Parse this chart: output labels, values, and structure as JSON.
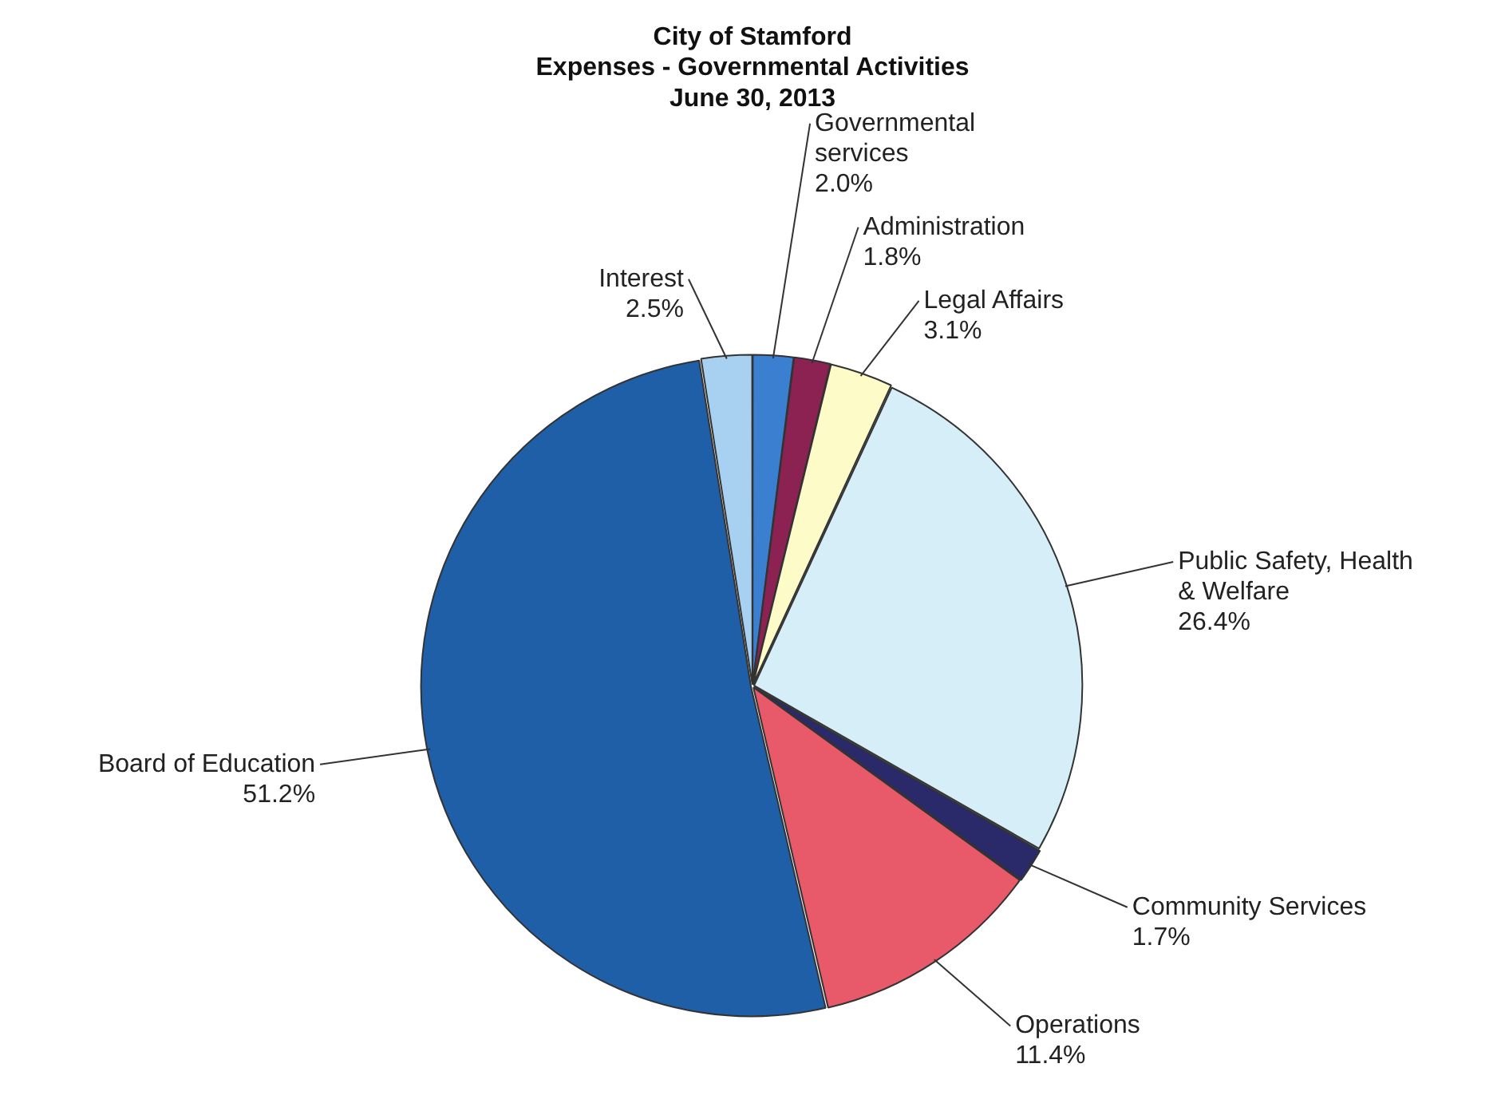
{
  "chart_data": {
    "type": "pie",
    "title": "City of Stamford\nExpenses - Governmental Activities\nJune 30, 2013",
    "categories": [
      "Governmental services",
      "Administration",
      "Legal Affairs",
      "Public Safety, Health & Welfare",
      "Community Services",
      "Operations",
      "Board of Education",
      "Interest"
    ],
    "values": [
      2.0,
      1.8,
      3.1,
      26.4,
      1.7,
      11.4,
      51.2,
      2.5
    ],
    "value_labels": [
      "2.0%",
      "1.8%",
      "3.1%",
      "26.4%",
      "1.7%",
      "11.4%",
      "51.2%",
      "2.5%"
    ],
    "colors": [
      "#3a7fd0",
      "#8b2252",
      "#fdfbc8",
      "#d6eef8",
      "#2a2a6a",
      "#e8596a",
      "#1f5fa8",
      "#a8d0f0"
    ],
    "legend": false
  }
}
